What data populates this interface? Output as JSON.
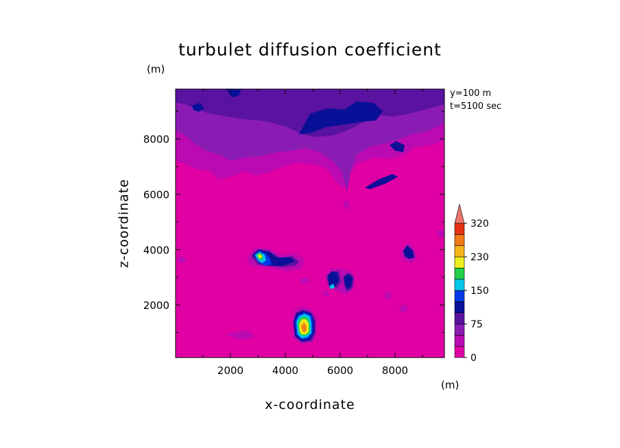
{
  "chart_data": {
    "type": "heatmap",
    "title": "turbulet diffusion coefficient",
    "xlabel": "x-coordinate",
    "ylabel": "z-coordinate",
    "x_unit": "(m)",
    "z_unit": "(m)",
    "info": [
      "y=100 m",
      "t=5100 sec"
    ],
    "xlim": [
      0,
      9800
    ],
    "ylim": [
      100,
      9800
    ],
    "x_ticks": [
      2000,
      4000,
      6000,
      8000
    ],
    "y_ticks": [
      2000,
      4000,
      6000,
      8000
    ],
    "colorbar": {
      "levels": [
        0,
        25,
        50,
        75,
        100,
        125,
        150,
        175,
        200,
        230,
        260,
        290,
        320
      ],
      "labels": [
        "0",
        "75",
        "150",
        "230",
        "320"
      ],
      "label_values": [
        0,
        75,
        150,
        230,
        320
      ],
      "colors": [
        "#e000a4",
        "#bb0ab2",
        "#8a1cb4",
        "#5a12a0",
        "#0a0f97",
        "#0038e8",
        "#00c6e8",
        "#22d04a",
        "#eeee1e",
        "#f7b41a",
        "#f07a16",
        "#e63212",
        "#eb756a"
      ],
      "extend": "max"
    },
    "field_description": "mostly 0-25 background; 25-75 band near top above z~7000; isolated maxima near (4800,1200) up to ~260 and (3100,3900) ~180"
  }
}
